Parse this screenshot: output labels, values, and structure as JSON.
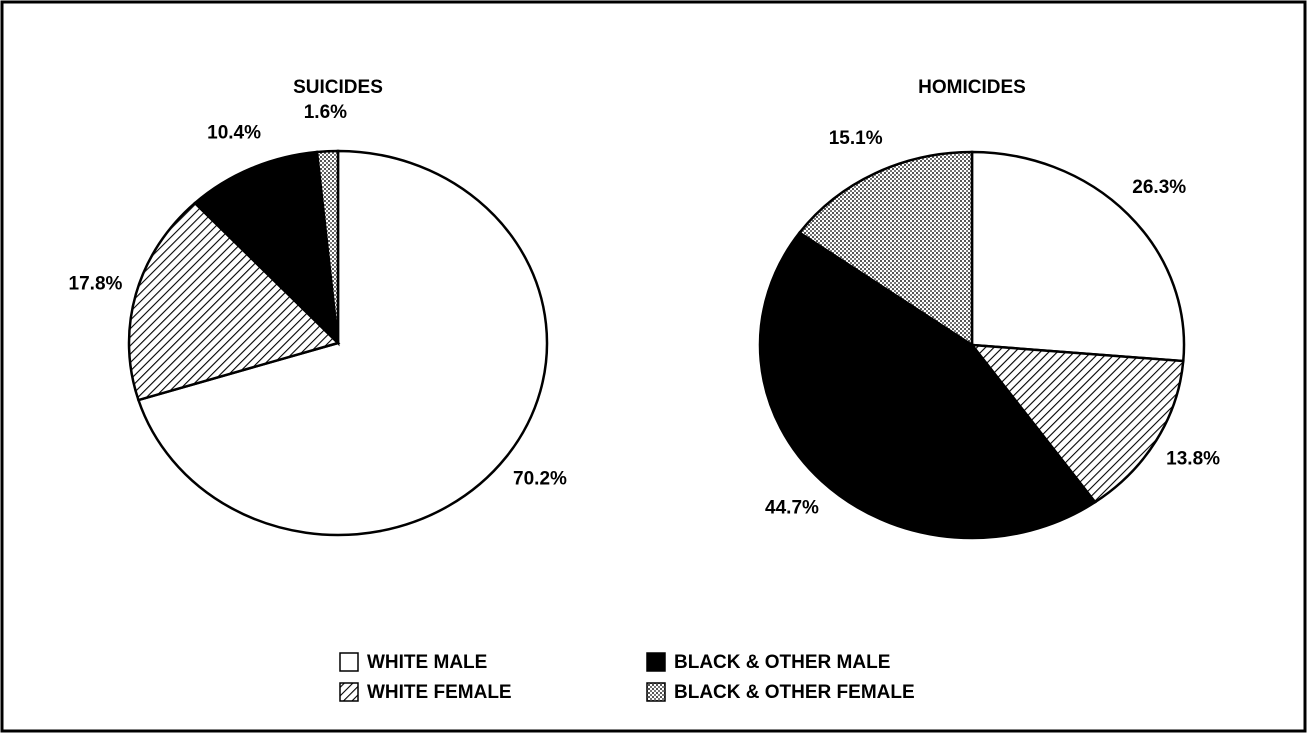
{
  "chart_data": [
    {
      "type": "pie",
      "title": "SUICIDES",
      "categories": [
        "WHITE MALE",
        "WHITE FEMALE",
        "BLACK & OTHER MALE",
        "BLACK & OTHER FEMALE"
      ],
      "values": [
        70.2,
        17.8,
        10.4,
        1.6
      ],
      "value_labels": [
        "70.2%",
        "17.8%",
        "10.4%",
        "1.6%"
      ],
      "patterns": [
        "blank",
        "diagonal",
        "solid",
        "dotted"
      ]
    },
    {
      "type": "pie",
      "title": "HOMICIDES",
      "categories": [
        "WHITE MALE",
        "WHITE FEMALE",
        "BLACK & OTHER MALE",
        "BLACK & OTHER FEMALE"
      ],
      "values": [
        26.3,
        13.8,
        44.7,
        15.1
      ],
      "value_labels": [
        "26.3%",
        "13.8%",
        "44.7%",
        "15.1%"
      ],
      "patterns": [
        "blank",
        "diagonal",
        "solid",
        "dotted"
      ]
    }
  ]
}
